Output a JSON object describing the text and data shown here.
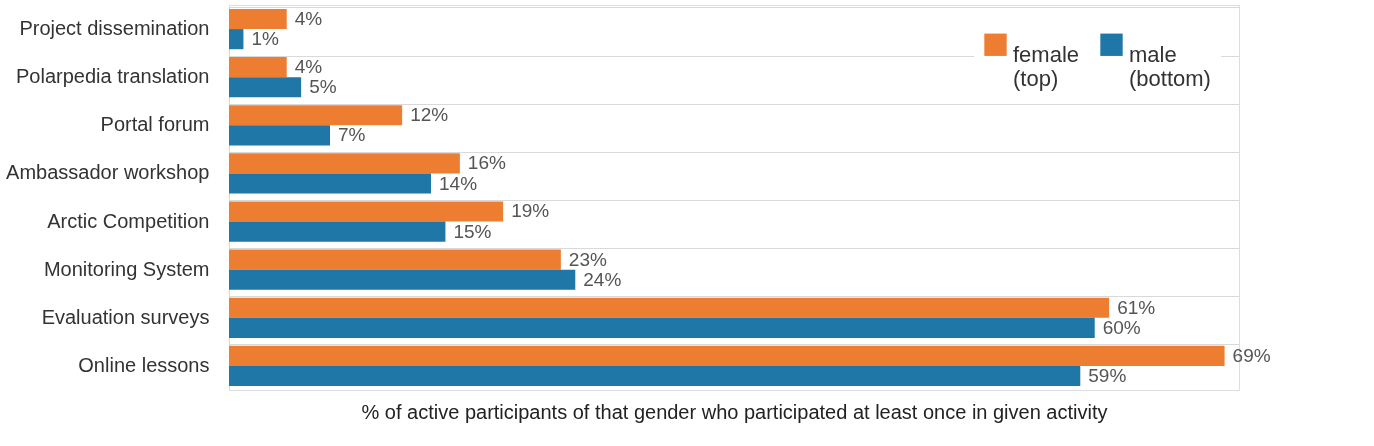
{
  "chart_data": {
    "type": "bar",
    "orientation": "horizontal",
    "categories": [
      "Project dissemination",
      "Polarpedia translation",
      "Portal forum",
      "Ambassador workshop",
      "Arctic Competition",
      "Monitoring System",
      "Evaluation surveys",
      "Online lessons"
    ],
    "series": [
      {
        "name": "female\n(top)",
        "color": "#ed7d31",
        "values": [
          4,
          4,
          12,
          16,
          19,
          23,
          61,
          69
        ],
        "value_labels": [
          "4%",
          "4%",
          "12%",
          "16%",
          "19%",
          "23%",
          "61%",
          "69%"
        ]
      },
      {
        "name": "male\n(bottom)",
        "color": "#1f77a8",
        "values": [
          1,
          5,
          7,
          14,
          15,
          24,
          60,
          59
        ],
        "value_labels": [
          "1%",
          "5%",
          "7%",
          "14%",
          "15%",
          "24%",
          "60%",
          "59%"
        ]
      }
    ],
    "xlabel": "% of active participants of that gender who participated at least once in given activity",
    "grid": "y",
    "legend": "top right",
    "tick_labels": "y"
  }
}
